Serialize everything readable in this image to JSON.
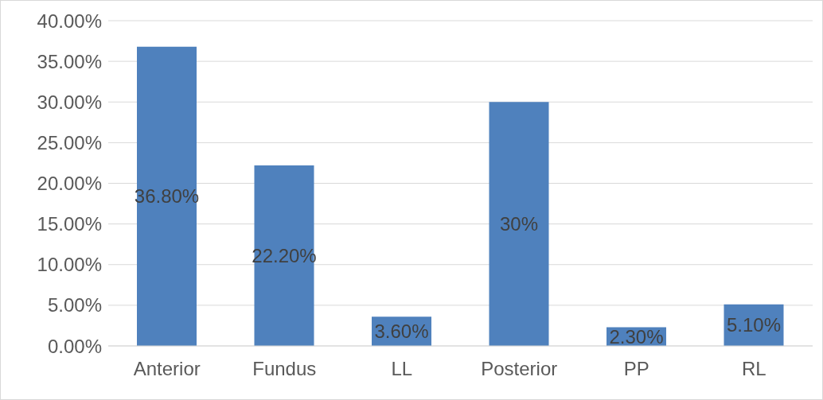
{
  "chart_data": {
    "type": "bar",
    "categories": [
      "Anterior",
      "Fundus",
      "LL",
      "Posterior",
      "PP",
      "RL"
    ],
    "values": [
      36.8,
      22.2,
      3.6,
      30,
      2.3,
      5.1
    ],
    "value_labels": [
      "36.80%",
      "22.20%",
      "3.60%",
      "30%",
      "2.30%",
      "5.10%"
    ],
    "color": "#4f81bd",
    "ylim": [
      0,
      40
    ],
    "yticks": [
      {
        "value": 0,
        "label": "0.00%"
      },
      {
        "value": 5,
        "label": "5.00%"
      },
      {
        "value": 10,
        "label": "10.00%"
      },
      {
        "value": 15,
        "label": "15.00%"
      },
      {
        "value": 20,
        "label": "20.00%"
      },
      {
        "value": 25,
        "label": "25.00%"
      },
      {
        "value": 30,
        "label": "30.00%"
      },
      {
        "value": 35,
        "label": "35.00%"
      },
      {
        "value": 40,
        "label": "40.00%"
      }
    ],
    "grid": "y"
  }
}
